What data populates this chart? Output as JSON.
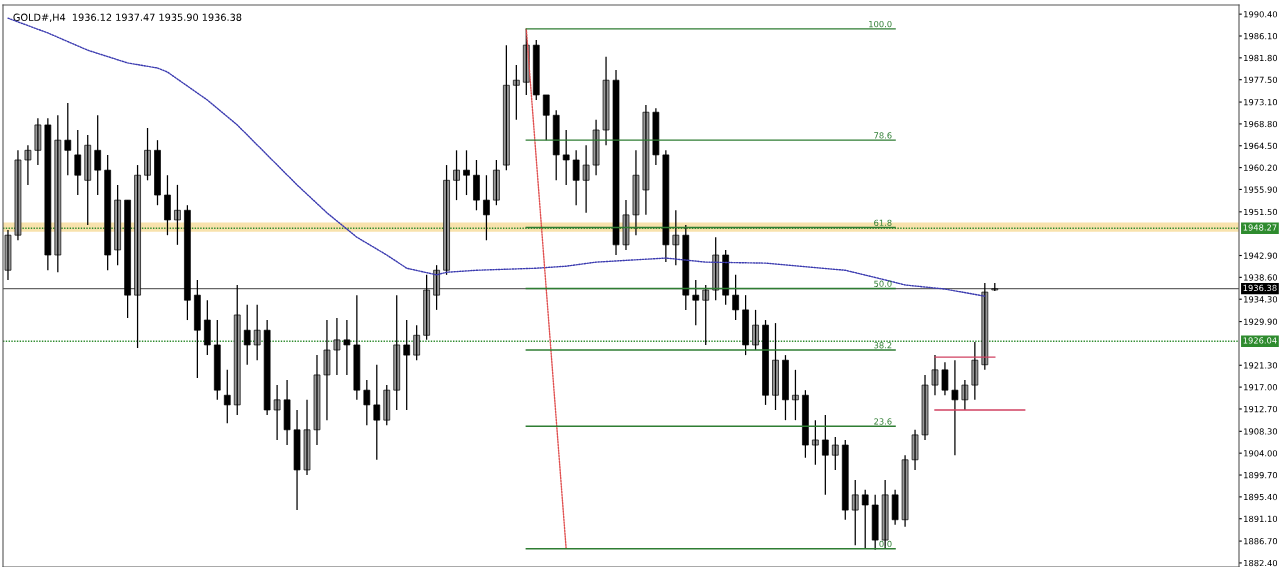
{
  "chart_data": {
    "type": "candlestick",
    "title": "GOLD#,H4  1936.12 1937.47 1935.90 1936.38",
    "categories": [
      null,
      null,
      null,
      null,
      null,
      null,
      null,
      null,
      null,
      null,
      null,
      null,
      null,
      null,
      null,
      null,
      null,
      null,
      null,
      null,
      null,
      null,
      null,
      null,
      null,
      null,
      null,
      null,
      null,
      null,
      null,
      null,
      null,
      null,
      null,
      null,
      null,
      null,
      null,
      null,
      null,
      null,
      null,
      null,
      null,
      null,
      null,
      null,
      null,
      null,
      null,
      null,
      null,
      null,
      null,
      null,
      null,
      null,
      null,
      null,
      null,
      null,
      null,
      null,
      null,
      null,
      null,
      null,
      null,
      null,
      null,
      null,
      null,
      null,
      null,
      null,
      null,
      null,
      null,
      null,
      null,
      null,
      null,
      null,
      null,
      null,
      null,
      null,
      null,
      null,
      null,
      null,
      null,
      null,
      null,
      null,
      null,
      null,
      null,
      null,
      null,
      null,
      null,
      null,
      null,
      null,
      null,
      null,
      null,
      null,
      null,
      null,
      null,
      null,
      null,
      null,
      null,
      null,
      null,
      null,
      null,
      null,
      null,
      null
    ],
    "ohlc": [
      [
        1940.0,
        1947.9,
        1938.1,
        1946.9
      ],
      [
        1946.9,
        1963.6,
        1945.9,
        1961.7
      ],
      [
        1961.7,
        1964.6,
        1956.8,
        1963.6
      ],
      [
        1963.6,
        1969.9,
        1960.7,
        1968.6
      ],
      [
        1968.6,
        1969.9,
        1940.0,
        1943.0
      ],
      [
        1943.0,
        1970.5,
        1939.6,
        1965.6
      ],
      [
        1965.6,
        1972.9,
        1958.7,
        1963.6
      ],
      [
        1962.7,
        1967.6,
        1954.8,
        1958.7
      ],
      [
        1957.7,
        1966.6,
        1948.9,
        1964.6
      ],
      [
        1963.6,
        1970.5,
        1954.8,
        1959.7
      ],
      [
        1959.7,
        1962.7,
        1940.0,
        1943.0
      ],
      [
        1944.0,
        1956.8,
        1941.0,
        1953.8
      ],
      [
        1953.8,
        1953.8,
        1930.6,
        1935.1
      ],
      [
        1935.1,
        1960.7,
        1924.7,
        1958.7
      ],
      [
        1958.7,
        1968.0,
        1957.7,
        1963.6
      ],
      [
        1963.6,
        1965.6,
        1952.8,
        1954.8
      ],
      [
        1954.8,
        1958.7,
        1946.9,
        1949.9
      ],
      [
        1949.9,
        1956.8,
        1945.0,
        1951.8
      ],
      [
        1951.8,
        1952.8,
        1930.2,
        1934.1
      ],
      [
        1935.1,
        1938.1,
        1918.8,
        1928.2
      ],
      [
        1930.2,
        1934.1,
        1923.3,
        1925.3
      ],
      [
        1925.3,
        1930.2,
        1914.5,
        1916.4
      ],
      [
        1915.4,
        1920.4,
        1909.9,
        1913.5
      ],
      [
        1913.5,
        1937.1,
        1911.5,
        1931.2
      ],
      [
        1928.2,
        1933.2,
        1921.4,
        1925.3
      ],
      [
        1925.3,
        1933.2,
        1922.3,
        1928.2
      ],
      [
        1928.2,
        1930.2,
        1911.5,
        1912.5
      ],
      [
        1912.5,
        1917.4,
        1906.6,
        1914.5
      ],
      [
        1914.5,
        1918.4,
        1905.6,
        1908.6
      ],
      [
        1908.6,
        1912.5,
        1892.8,
        1900.7
      ],
      [
        1900.7,
        1914.5,
        1899.7,
        1908.6
      ],
      [
        1908.6,
        1923.3,
        1905.6,
        1919.4
      ],
      [
        1919.4,
        1930.2,
        1910.5,
        1924.3
      ],
      [
        1924.3,
        1930.6,
        1919.4,
        1926.3
      ],
      [
        1926.3,
        1930.2,
        1919.4,
        1925.3
      ],
      [
        1925.3,
        1935.1,
        1914.5,
        1916.4
      ],
      [
        1916.4,
        1918.4,
        1909.5,
        1913.5
      ],
      [
        1913.5,
        1921.4,
        1902.7,
        1910.5
      ],
      [
        1910.5,
        1917.4,
        1909.5,
        1916.4
      ],
      [
        1916.4,
        1935.1,
        1912.5,
        1925.3
      ],
      [
        1925.3,
        1930.2,
        1912.5,
        1923.3
      ],
      [
        1923.3,
        1929.2,
        1922.3,
        1927.2
      ],
      [
        1927.2,
        1939.1,
        1926.3,
        1936.1
      ],
      [
        1935.1,
        1941.0,
        1932.2,
        1940.0
      ],
      [
        1940.0,
        1960.7,
        1939.1,
        1957.7
      ],
      [
        1957.7,
        1963.6,
        1953.8,
        1959.7
      ],
      [
        1959.7,
        1963.6,
        1954.8,
        1958.7
      ],
      [
        1958.7,
        1961.7,
        1951.8,
        1953.8
      ],
      [
        1953.8,
        1958.7,
        1945.9,
        1950.9
      ],
      [
        1953.8,
        1961.7,
        1952.8,
        1959.7
      ],
      [
        1960.7,
        1984.3,
        1959.7,
        1976.4
      ],
      [
        1976.4,
        1980.4,
        1969.6,
        1977.4
      ],
      [
        1977.0,
        1987.5,
        1974.5,
        1984.3
      ],
      [
        1984.3,
        1985.3,
        1973.5,
        1974.5
      ],
      [
        1974.5,
        1974.5,
        1965.6,
        1970.5
      ],
      [
        1970.5,
        1971.5,
        1957.7,
        1962.7
      ],
      [
        1962.7,
        1967.6,
        1956.8,
        1961.7
      ],
      [
        1961.7,
        1963.6,
        1952.8,
        1957.7
      ],
      [
        1957.7,
        1964.6,
        1951.3,
        1960.7
      ],
      [
        1960.7,
        1969.6,
        1958.7,
        1967.6
      ],
      [
        1967.6,
        1982.0,
        1964.6,
        1977.4
      ],
      [
        1977.4,
        1979.4,
        1943.0,
        1945.0
      ],
      [
        1945.0,
        1953.8,
        1944.0,
        1950.9
      ],
      [
        1950.9,
        1963.6,
        1946.9,
        1958.7
      ],
      [
        1955.8,
        1972.5,
        1950.9,
        1971.1
      ],
      [
        1971.1,
        1971.9,
        1960.7,
        1962.7
      ],
      [
        1962.7,
        1963.6,
        1941.6,
        1945.0
      ],
      [
        1945.0,
        1951.8,
        1941.0,
        1946.9
      ],
      [
        1946.9,
        1948.9,
        1932.2,
        1935.1
      ],
      [
        1935.1,
        1938.1,
        1929.2,
        1934.1
      ],
      [
        1934.1,
        1937.1,
        1925.3,
        1936.1
      ],
      [
        1936.1,
        1946.5,
        1934.1,
        1943.0
      ],
      [
        1943.0,
        1944.0,
        1933.2,
        1935.1
      ],
      [
        1935.1,
        1939.1,
        1930.2,
        1932.2
      ],
      [
        1932.2,
        1935.1,
        1923.3,
        1925.3
      ],
      [
        1925.3,
        1932.2,
        1924.3,
        1929.2
      ],
      [
        1929.2,
        1930.2,
        1913.5,
        1915.4
      ],
      [
        1915.4,
        1929.6,
        1912.5,
        1922.3
      ],
      [
        1922.3,
        1923.3,
        1910.5,
        1914.5
      ],
      [
        1914.5,
        1920.4,
        1910.5,
        1915.4
      ],
      [
        1915.4,
        1916.4,
        1903.1,
        1905.6
      ],
      [
        1905.6,
        1910.5,
        1901.7,
        1906.6
      ],
      [
        1906.6,
        1911.5,
        1895.8,
        1903.6
      ],
      [
        1903.6,
        1907.2,
        1900.7,
        1905.6
      ],
      [
        1905.6,
        1906.6,
        1890.9,
        1892.8
      ],
      [
        1892.8,
        1898.7,
        1885.9,
        1895.8
      ],
      [
        1895.8,
        1896.8,
        1885.3,
        1893.8
      ],
      [
        1893.8,
        1895.8,
        1885.0,
        1886.9
      ],
      [
        1886.9,
        1898.7,
        1885.3,
        1895.8
      ],
      [
        1895.8,
        1896.8,
        1889.9,
        1890.9
      ],
      [
        1890.9,
        1903.6,
        1889.5,
        1902.7
      ],
      [
        1902.7,
        1908.6,
        1900.7,
        1907.6
      ],
      [
        1907.6,
        1919.4,
        1906.6,
        1917.4
      ],
      [
        1917.4,
        1923.3,
        1915.4,
        1920.4
      ],
      [
        1920.4,
        1921.9,
        1915.4,
        1916.4
      ],
      [
        1916.4,
        1922.3,
        1903.6,
        1914.5
      ],
      [
        1914.5,
        1918.4,
        1912.5,
        1917.4
      ],
      [
        1917.4,
        1925.9,
        1914.5,
        1922.3
      ],
      [
        1921.4,
        1937.5,
        1920.4,
        1935.7
      ],
      [
        1936.12,
        1937.47,
        1935.9,
        1936.38
      ],
      null,
      null,
      null,
      null,
      null,
      null,
      null,
      null,
      null,
      null,
      null,
      null,
      null,
      null,
      null,
      null,
      null,
      null,
      null,
      null,
      null,
      null,
      null,
      null
    ],
    "series": [
      {
        "type": "line",
        "color": "#3b3bb0",
        "line_style": "dotted",
        "values": [
          1989.6,
          null,
          null,
          null,
          1986.7,
          null,
          null,
          null,
          1983.3,
          null,
          null,
          null,
          1980.8,
          null,
          null,
          1979.8,
          1979.0,
          null,
          null,
          null,
          1973.5,
          null,
          null,
          1968.6,
          null,
          null,
          1962.7,
          null,
          null,
          1956.8,
          null,
          null,
          1951.3,
          null,
          null,
          1946.5,
          null,
          null,
          1943.0,
          null,
          1940.4,
          null,
          null,
          1939.1,
          1939.6,
          null,
          null,
          1940.0,
          null,
          null,
          null,
          null,
          null,
          1940.4,
          null,
          null,
          1940.8,
          null,
          null,
          1941.6,
          null,
          null,
          null,
          null,
          null,
          null,
          1942.4,
          null,
          null,
          null,
          1941.6,
          null,
          null,
          null,
          null,
          null,
          1941.4,
          null,
          null,
          null,
          null,
          null,
          null,
          null,
          1940.0,
          null,
          null,
          null,
          1938.1,
          null,
          1937.1,
          null,
          null,
          null,
          1936.3,
          null,
          null,
          null,
          1934.9,
          null,
          null,
          null,
          null,
          null,
          null,
          null,
          null,
          null,
          null,
          null,
          null,
          null,
          null,
          null,
          null,
          null,
          null,
          null,
          null,
          null,
          null,
          null,
          null,
          null
        ]
      },
      {
        "type": "line",
        "color": "#e05050",
        "line_style": "dotted",
        "values": [
          null,
          null,
          null,
          null,
          null,
          null,
          null,
          null,
          null,
          null,
          null,
          null,
          null,
          null,
          null,
          null,
          null,
          null,
          null,
          null,
          null,
          null,
          null,
          null,
          null,
          null,
          null,
          null,
          null,
          null,
          null,
          null,
          null,
          null,
          null,
          null,
          null,
          null,
          null,
          null,
          null,
          null,
          null,
          null,
          null,
          null,
          null,
          null,
          null,
          null,
          null,
          null,
          1987.5,
          null,
          null,
          null,
          1885.1,
          null,
          null,
          null,
          null,
          null,
          null,
          null,
          null,
          null,
          null,
          null,
          null,
          null,
          null,
          null,
          null,
          null,
          null,
          null,
          null,
          null,
          null,
          null,
          null,
          null,
          null,
          null,
          null,
          null,
          null,
          null,
          null,
          null,
          null,
          null,
          null,
          null,
          null,
          null,
          null,
          null,
          null,
          null,
          null,
          null,
          null,
          null,
          null,
          null,
          null,
          null,
          null,
          null,
          null,
          null,
          null,
          null,
          null,
          null,
          null,
          null,
          null,
          null,
          null,
          null,
          null,
          null
        ]
      },
      {
        "type": "line",
        "name": "100.0",
        "color": "#2e7d32",
        "line_style": "solid",
        "values": [
          null,
          null,
          null,
          null,
          null,
          null,
          null,
          null,
          null,
          null,
          null,
          null,
          null,
          null,
          null,
          null,
          null,
          null,
          null,
          null,
          null,
          null,
          null,
          null,
          null,
          null,
          null,
          null,
          null,
          null,
          null,
          null,
          null,
          null,
          null,
          null,
          null,
          null,
          null,
          null,
          null,
          null,
          null,
          null,
          null,
          null,
          null,
          null,
          null,
          null,
          null,
          null,
          1987.5,
          null,
          null,
          null,
          null,
          null,
          null,
          null,
          null,
          null,
          null,
          null,
          null,
          null,
          null,
          null,
          null,
          null,
          null,
          null,
          null,
          null,
          null,
          null,
          null,
          null,
          null,
          null,
          null,
          null,
          null,
          null,
          null,
          null,
          null,
          null,
          null,
          1987.5,
          null,
          null,
          null,
          null,
          null,
          null,
          null,
          null,
          null,
          null,
          null,
          null,
          null,
          null,
          null,
          null,
          null,
          null,
          null,
          null,
          null,
          null,
          null,
          null,
          null,
          null,
          null,
          null,
          null,
          null,
          null,
          null,
          null,
          null
        ]
      },
      {
        "type": "line",
        "name": "78.6",
        "color": "#2e7d32",
        "line_style": "solid",
        "values": [
          null,
          null,
          null,
          null,
          null,
          null,
          null,
          null,
          null,
          null,
          null,
          null,
          null,
          null,
          null,
          null,
          null,
          null,
          null,
          null,
          null,
          null,
          null,
          null,
          null,
          null,
          null,
          null,
          null,
          null,
          null,
          null,
          null,
          null,
          null,
          null,
          null,
          null,
          null,
          null,
          null,
          null,
          null,
          null,
          null,
          null,
          null,
          null,
          null,
          null,
          null,
          null,
          1965.6,
          null,
          null,
          null,
          null,
          null,
          null,
          null,
          null,
          null,
          null,
          null,
          null,
          null,
          null,
          null,
          null,
          null,
          null,
          null,
          null,
          null,
          null,
          null,
          null,
          null,
          null,
          null,
          null,
          null,
          null,
          null,
          null,
          null,
          null,
          null,
          null,
          1965.6,
          null,
          null,
          null,
          null,
          null,
          null,
          null,
          null,
          null,
          null,
          null,
          null,
          null,
          null,
          null,
          null,
          null,
          null,
          null,
          null,
          null,
          null,
          null,
          null,
          null,
          null,
          null,
          null,
          null,
          null,
          null,
          null,
          null,
          null
        ]
      },
      {
        "type": "line",
        "name": "61.8",
        "color": "#2e7d32",
        "line_style": "solid",
        "values": [
          null,
          null,
          null,
          null,
          null,
          null,
          null,
          null,
          null,
          null,
          null,
          null,
          null,
          null,
          null,
          null,
          null,
          null,
          null,
          null,
          null,
          null,
          null,
          null,
          null,
          null,
          null,
          null,
          null,
          null,
          null,
          null,
          null,
          null,
          null,
          null,
          null,
          null,
          null,
          null,
          null,
          null,
          null,
          null,
          null,
          null,
          null,
          null,
          null,
          null,
          null,
          null,
          1948.4,
          null,
          null,
          null,
          null,
          null,
          null,
          null,
          null,
          null,
          null,
          null,
          null,
          null,
          null,
          null,
          null,
          null,
          null,
          null,
          null,
          null,
          null,
          null,
          null,
          null,
          null,
          null,
          null,
          null,
          null,
          null,
          null,
          null,
          null,
          null,
          null,
          1948.4,
          null,
          null,
          null,
          null,
          null,
          null,
          null,
          null,
          null,
          null,
          null,
          null,
          null,
          null,
          null,
          null,
          null,
          null,
          null,
          null,
          null,
          null,
          null,
          null,
          null,
          null,
          null,
          null,
          null,
          null,
          null,
          null,
          null,
          null
        ]
      },
      {
        "type": "line",
        "name": "50.0",
        "color": "#2e7d32",
        "line_style": "solid",
        "values": [
          null,
          null,
          null,
          null,
          null,
          null,
          null,
          null,
          null,
          null,
          null,
          null,
          null,
          null,
          null,
          null,
          null,
          null,
          null,
          null,
          null,
          null,
          null,
          null,
          null,
          null,
          null,
          null,
          null,
          null,
          null,
          null,
          null,
          null,
          null,
          null,
          null,
          null,
          null,
          null,
          null,
          null,
          null,
          null,
          null,
          null,
          null,
          null,
          null,
          null,
          null,
          null,
          1936.4,
          null,
          null,
          null,
          null,
          null,
          null,
          null,
          null,
          null,
          null,
          null,
          null,
          null,
          null,
          null,
          null,
          null,
          null,
          null,
          null,
          null,
          null,
          null,
          null,
          null,
          null,
          null,
          null,
          null,
          null,
          null,
          null,
          null,
          null,
          null,
          null,
          1936.4,
          null,
          null,
          null,
          null,
          null,
          null,
          null,
          null,
          null,
          null,
          null,
          null,
          null,
          null,
          null,
          null,
          null,
          null,
          null,
          null,
          null,
          null,
          null,
          null,
          null,
          null,
          null,
          null,
          null,
          null,
          null,
          null,
          null,
          null
        ]
      },
      {
        "type": "line",
        "name": "38.2",
        "color": "#2e7d32",
        "line_style": "solid",
        "values": [
          null,
          null,
          null,
          null,
          null,
          null,
          null,
          null,
          null,
          null,
          null,
          null,
          null,
          null,
          null,
          null,
          null,
          null,
          null,
          null,
          null,
          null,
          null,
          null,
          null,
          null,
          null,
          null,
          null,
          null,
          null,
          null,
          null,
          null,
          null,
          null,
          null,
          null,
          null,
          null,
          null,
          null,
          null,
          null,
          null,
          null,
          null,
          null,
          null,
          null,
          null,
          null,
          1924.3,
          null,
          null,
          null,
          null,
          null,
          null,
          null,
          null,
          null,
          null,
          null,
          null,
          null,
          null,
          null,
          null,
          null,
          null,
          null,
          null,
          null,
          null,
          null,
          null,
          null,
          null,
          null,
          null,
          null,
          null,
          null,
          null,
          null,
          null,
          null,
          null,
          1924.3,
          null,
          null,
          null,
          null,
          null,
          null,
          null,
          null,
          null,
          null,
          null,
          null,
          null,
          null,
          null,
          null,
          null,
          null,
          null,
          null,
          null,
          null,
          null,
          null,
          null,
          null,
          null,
          null,
          null,
          null,
          null,
          null,
          null,
          null
        ]
      },
      {
        "type": "line",
        "name": "23.6",
        "color": "#2e7d32",
        "line_style": "solid",
        "values": [
          null,
          null,
          null,
          null,
          null,
          null,
          null,
          null,
          null,
          null,
          null,
          null,
          null,
          null,
          null,
          null,
          null,
          null,
          null,
          null,
          null,
          null,
          null,
          null,
          null,
          null,
          null,
          null,
          null,
          null,
          null,
          null,
          null,
          null,
          null,
          null,
          null,
          null,
          null,
          null,
          null,
          null,
          null,
          null,
          null,
          null,
          null,
          null,
          null,
          null,
          null,
          null,
          1909.3,
          null,
          null,
          null,
          null,
          null,
          null,
          null,
          null,
          null,
          null,
          null,
          null,
          null,
          null,
          null,
          null,
          null,
          null,
          null,
          null,
          null,
          null,
          null,
          null,
          null,
          null,
          null,
          null,
          null,
          null,
          null,
          null,
          null,
          null,
          null,
          null,
          1909.3,
          null,
          null,
          null,
          null,
          null,
          null,
          null,
          null,
          null,
          null,
          null,
          null,
          null,
          null,
          null,
          null,
          null,
          null,
          null,
          null,
          null,
          null,
          null,
          null,
          null,
          null,
          null,
          null,
          null,
          null,
          null,
          null,
          null,
          null
        ]
      },
      {
        "type": "line",
        "name": "0.0",
        "color": "#2e7d32",
        "line_style": "solid",
        "values": [
          null,
          null,
          null,
          null,
          null,
          null,
          null,
          null,
          null,
          null,
          null,
          null,
          null,
          null,
          null,
          null,
          null,
          null,
          null,
          null,
          null,
          null,
          null,
          null,
          null,
          null,
          null,
          null,
          null,
          null,
          null,
          null,
          null,
          null,
          null,
          null,
          null,
          null,
          null,
          null,
          null,
          null,
          null,
          null,
          null,
          null,
          null,
          null,
          null,
          null,
          null,
          null,
          1885.2,
          null,
          null,
          null,
          null,
          null,
          null,
          null,
          null,
          null,
          null,
          null,
          null,
          null,
          null,
          null,
          null,
          null,
          null,
          null,
          null,
          null,
          null,
          null,
          null,
          null,
          null,
          null,
          null,
          null,
          null,
          null,
          null,
          null,
          null,
          null,
          null,
          1885.2,
          null,
          null,
          null,
          null,
          null,
          null,
          null,
          null,
          null,
          null,
          null,
          null,
          null,
          null,
          null,
          null,
          null,
          null,
          null,
          null,
          null,
          null,
          null,
          null,
          null,
          null,
          null,
          null,
          null,
          null,
          null,
          null,
          null,
          null
        ]
      },
      {
        "type": "line",
        "color": "#d04060",
        "line_style": "solid",
        "values": [
          null,
          null,
          null,
          null,
          null,
          null,
          null,
          null,
          null,
          null,
          null,
          null,
          null,
          null,
          null,
          null,
          null,
          null,
          null,
          null,
          null,
          null,
          null,
          null,
          null,
          null,
          null,
          null,
          null,
          null,
          null,
          null,
          null,
          null,
          null,
          null,
          null,
          null,
          null,
          null,
          null,
          null,
          null,
          null,
          null,
          null,
          null,
          null,
          null,
          null,
          null,
          null,
          null,
          null,
          null,
          null,
          null,
          null,
          null,
          null,
          null,
          null,
          null,
          null,
          null,
          null,
          null,
          null,
          null,
          null,
          null,
          null,
          null,
          null,
          null,
          null,
          null,
          null,
          null,
          null,
          null,
          null,
          null,
          null,
          null,
          null,
          null,
          null,
          null,
          null,
          null,
          null,
          null,
          1922.9,
          null,
          null,
          null,
          null,
          null,
          1922.9,
          null,
          null,
          null,
          null,
          null,
          null,
          null,
          null,
          null,
          null,
          null,
          null,
          null,
          null,
          null,
          null,
          null,
          null,
          null,
          null,
          null,
          null,
          null,
          null
        ]
      },
      {
        "type": "line",
        "color": "#d04060",
        "line_style": "solid",
        "values": [
          null,
          null,
          null,
          null,
          null,
          null,
          null,
          null,
          null,
          null,
          null,
          null,
          null,
          null,
          null,
          null,
          null,
          null,
          null,
          null,
          null,
          null,
          null,
          null,
          null,
          null,
          null,
          null,
          null,
          null,
          null,
          null,
          null,
          null,
          null,
          null,
          null,
          null,
          null,
          null,
          null,
          null,
          null,
          null,
          null,
          null,
          null,
          null,
          null,
          null,
          null,
          null,
          null,
          null,
          null,
          null,
          null,
          null,
          null,
          null,
          null,
          null,
          null,
          null,
          null,
          null,
          null,
          null,
          null,
          null,
          null,
          null,
          null,
          null,
          null,
          null,
          null,
          null,
          null,
          null,
          null,
          null,
          null,
          null,
          null,
          null,
          null,
          null,
          null,
          null,
          null,
          null,
          null,
          1912.5,
          null,
          null,
          null,
          null,
          null,
          null,
          null,
          null,
          1912.5,
          null,
          null,
          null,
          null,
          null,
          null,
          null,
          null,
          null,
          null,
          null,
          null,
          null,
          null,
          null,
          null,
          null,
          null,
          null,
          null,
          null
        ]
      }
    ],
    "ref_lines": [
      {
        "axis": "y",
        "value": 1948.27,
        "label": "1948.27",
        "color": "#2e8b2e",
        "line_style": "dotted"
      },
      {
        "axis": "y",
        "value": 1926.04,
        "label": "1926.04",
        "color": "#2e8b2e",
        "line_style": "dotted"
      },
      {
        "axis": "y",
        "value": 1936.38,
        "label": "1936.38",
        "color": "#000000",
        "line_style": "solid"
      }
    ],
    "bands": [
      {
        "axis": "y",
        "from": 1947.6,
        "to": 1949.4,
        "color": "#f5d58a"
      }
    ],
    "ylim": [
      1881.6,
      1992.2
    ],
    "yticks": [
      {
        "value": 1990.4,
        "label": "1990.40"
      },
      {
        "value": 1986.1,
        "label": "1986.10"
      },
      {
        "value": 1981.8,
        "label": "1981.80"
      },
      {
        "value": 1977.5,
        "label": "1977.50"
      },
      {
        "value": 1973.1,
        "label": "1973.10"
      },
      {
        "value": 1968.8,
        "label": "1968.80"
      },
      {
        "value": 1964.5,
        "label": "1964.50"
      },
      {
        "value": 1960.2,
        "label": "1960.20"
      },
      {
        "value": 1955.9,
        "label": "1955.90"
      },
      {
        "value": 1951.5,
        "label": "1951.50"
      },
      {
        "value": 1942.9,
        "label": "1942.90"
      },
      {
        "value": 1938.6,
        "label": "1938.60"
      },
      {
        "value": 1934.3,
        "label": "1934.30"
      },
      {
        "value": 1929.9,
        "label": "1929.90"
      },
      {
        "value": 1921.3,
        "label": "1921.30"
      },
      {
        "value": 1917.0,
        "label": "1917.00"
      },
      {
        "value": 1912.7,
        "label": "1912.70"
      },
      {
        "value": 1908.3,
        "label": "1908.30"
      },
      {
        "value": 1904.0,
        "label": "1904.00"
      },
      {
        "value": 1899.7,
        "label": "1899.70"
      },
      {
        "value": 1895.4,
        "label": "1895.40"
      },
      {
        "value": 1891.1,
        "label": "1891.10"
      },
      {
        "value": 1886.7,
        "label": "1886.70"
      },
      {
        "value": 1882.4,
        "label": "1882.40"
      }
    ],
    "tick_labels": "y",
    "grid": false
  }
}
